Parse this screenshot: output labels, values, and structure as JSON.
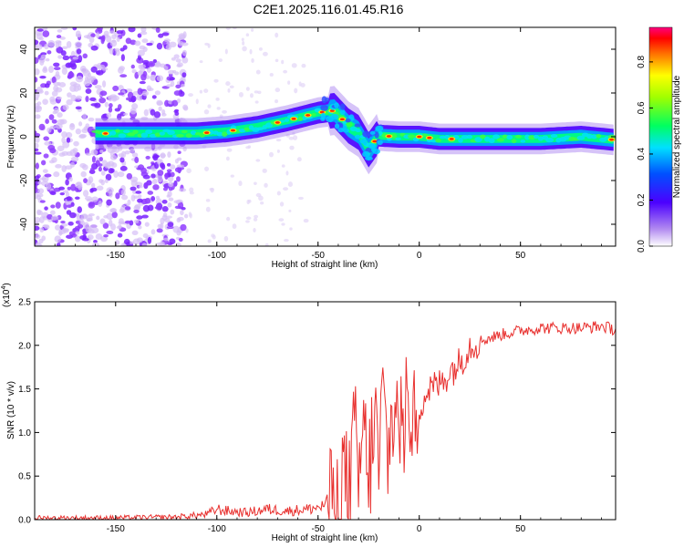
{
  "title": "C2E1.2025.116.01.45.R16",
  "colors": {
    "snr_line": "#e8302e",
    "axis": "#000000",
    "background": "#ffffff"
  },
  "chart_data": [
    {
      "type": "heatmap",
      "xlabel": "Height of straight line (km)",
      "ylabel": "Frequency (Hz)",
      "xlim": [
        -190,
        97
      ],
      "ylim": [
        -50,
        50
      ],
      "x_ticks": [
        "-150",
        "-100",
        "-50",
        "0",
        "50"
      ],
      "y_ticks": [
        "40",
        "20",
        "0",
        "-20",
        "-40"
      ],
      "colorbar": {
        "label": "Normalized spectral amplitude",
        "range": [
          0,
          0.95
        ],
        "ticks": [
          "0.0",
          "0.2",
          "0.4",
          "0.6",
          "0.8"
        ]
      },
      "ridge": {
        "x": [
          -160,
          -140,
          -125,
          -110,
          -95,
          -80,
          -65,
          -50,
          -42,
          -35,
          -30,
          -25,
          -20,
          -10,
          0,
          10,
          20,
          40,
          60,
          80,
          97
        ],
        "y": [
          1.5,
          1.5,
          1.5,
          1.5,
          2.5,
          4.5,
          7.5,
          11,
          12,
          5,
          2,
          -6,
          0.5,
          0,
          0,
          -1,
          -1,
          -1,
          -1,
          0,
          -1.5
        ]
      }
    },
    {
      "type": "line",
      "xlabel": "Height of straight line (km)",
      "ylabel": "SNR (10 * v/v)",
      "exponent_label": "(x10",
      "exponent_power": "4",
      "exponent_close": ")",
      "xlim": [
        -190,
        97
      ],
      "ylim": [
        0,
        2.5
      ],
      "x_ticks": [
        "-150",
        "-100",
        "-50",
        "0",
        "50"
      ],
      "y_ticks": [
        "0.0",
        "0.5",
        "1.0",
        "1.5",
        "2.0",
        "2.5"
      ],
      "series": [
        {
          "x": [
            -190,
            -150,
            -120,
            -105,
            -100,
            -95,
            -85,
            -75,
            -65,
            -55,
            -48,
            -42,
            -40,
            -38,
            -35,
            -32,
            -30,
            -28,
            -25,
            -22,
            -20,
            -18,
            -15,
            -13,
            -10,
            -8,
            -5,
            -3,
            0,
            5,
            10,
            15,
            20,
            25,
            30,
            40,
            50,
            60,
            70,
            80,
            90,
            97
          ],
          "y": [
            0.02,
            0.02,
            0.03,
            0.06,
            0.12,
            0.1,
            0.08,
            0.12,
            0.1,
            0.12,
            0.15,
            0.25,
            0.2,
            0.55,
            0.35,
            0.9,
            0.4,
            1.0,
            0.5,
            1.2,
            0.6,
            1.4,
            0.7,
            1.2,
            1.3,
            0.9,
            1.5,
            1.1,
            1.3,
            1.5,
            1.55,
            1.7,
            1.8,
            2.0,
            2.05,
            2.12,
            2.17,
            2.2,
            2.2,
            2.2,
            2.22,
            2.18
          ]
        }
      ]
    }
  ]
}
